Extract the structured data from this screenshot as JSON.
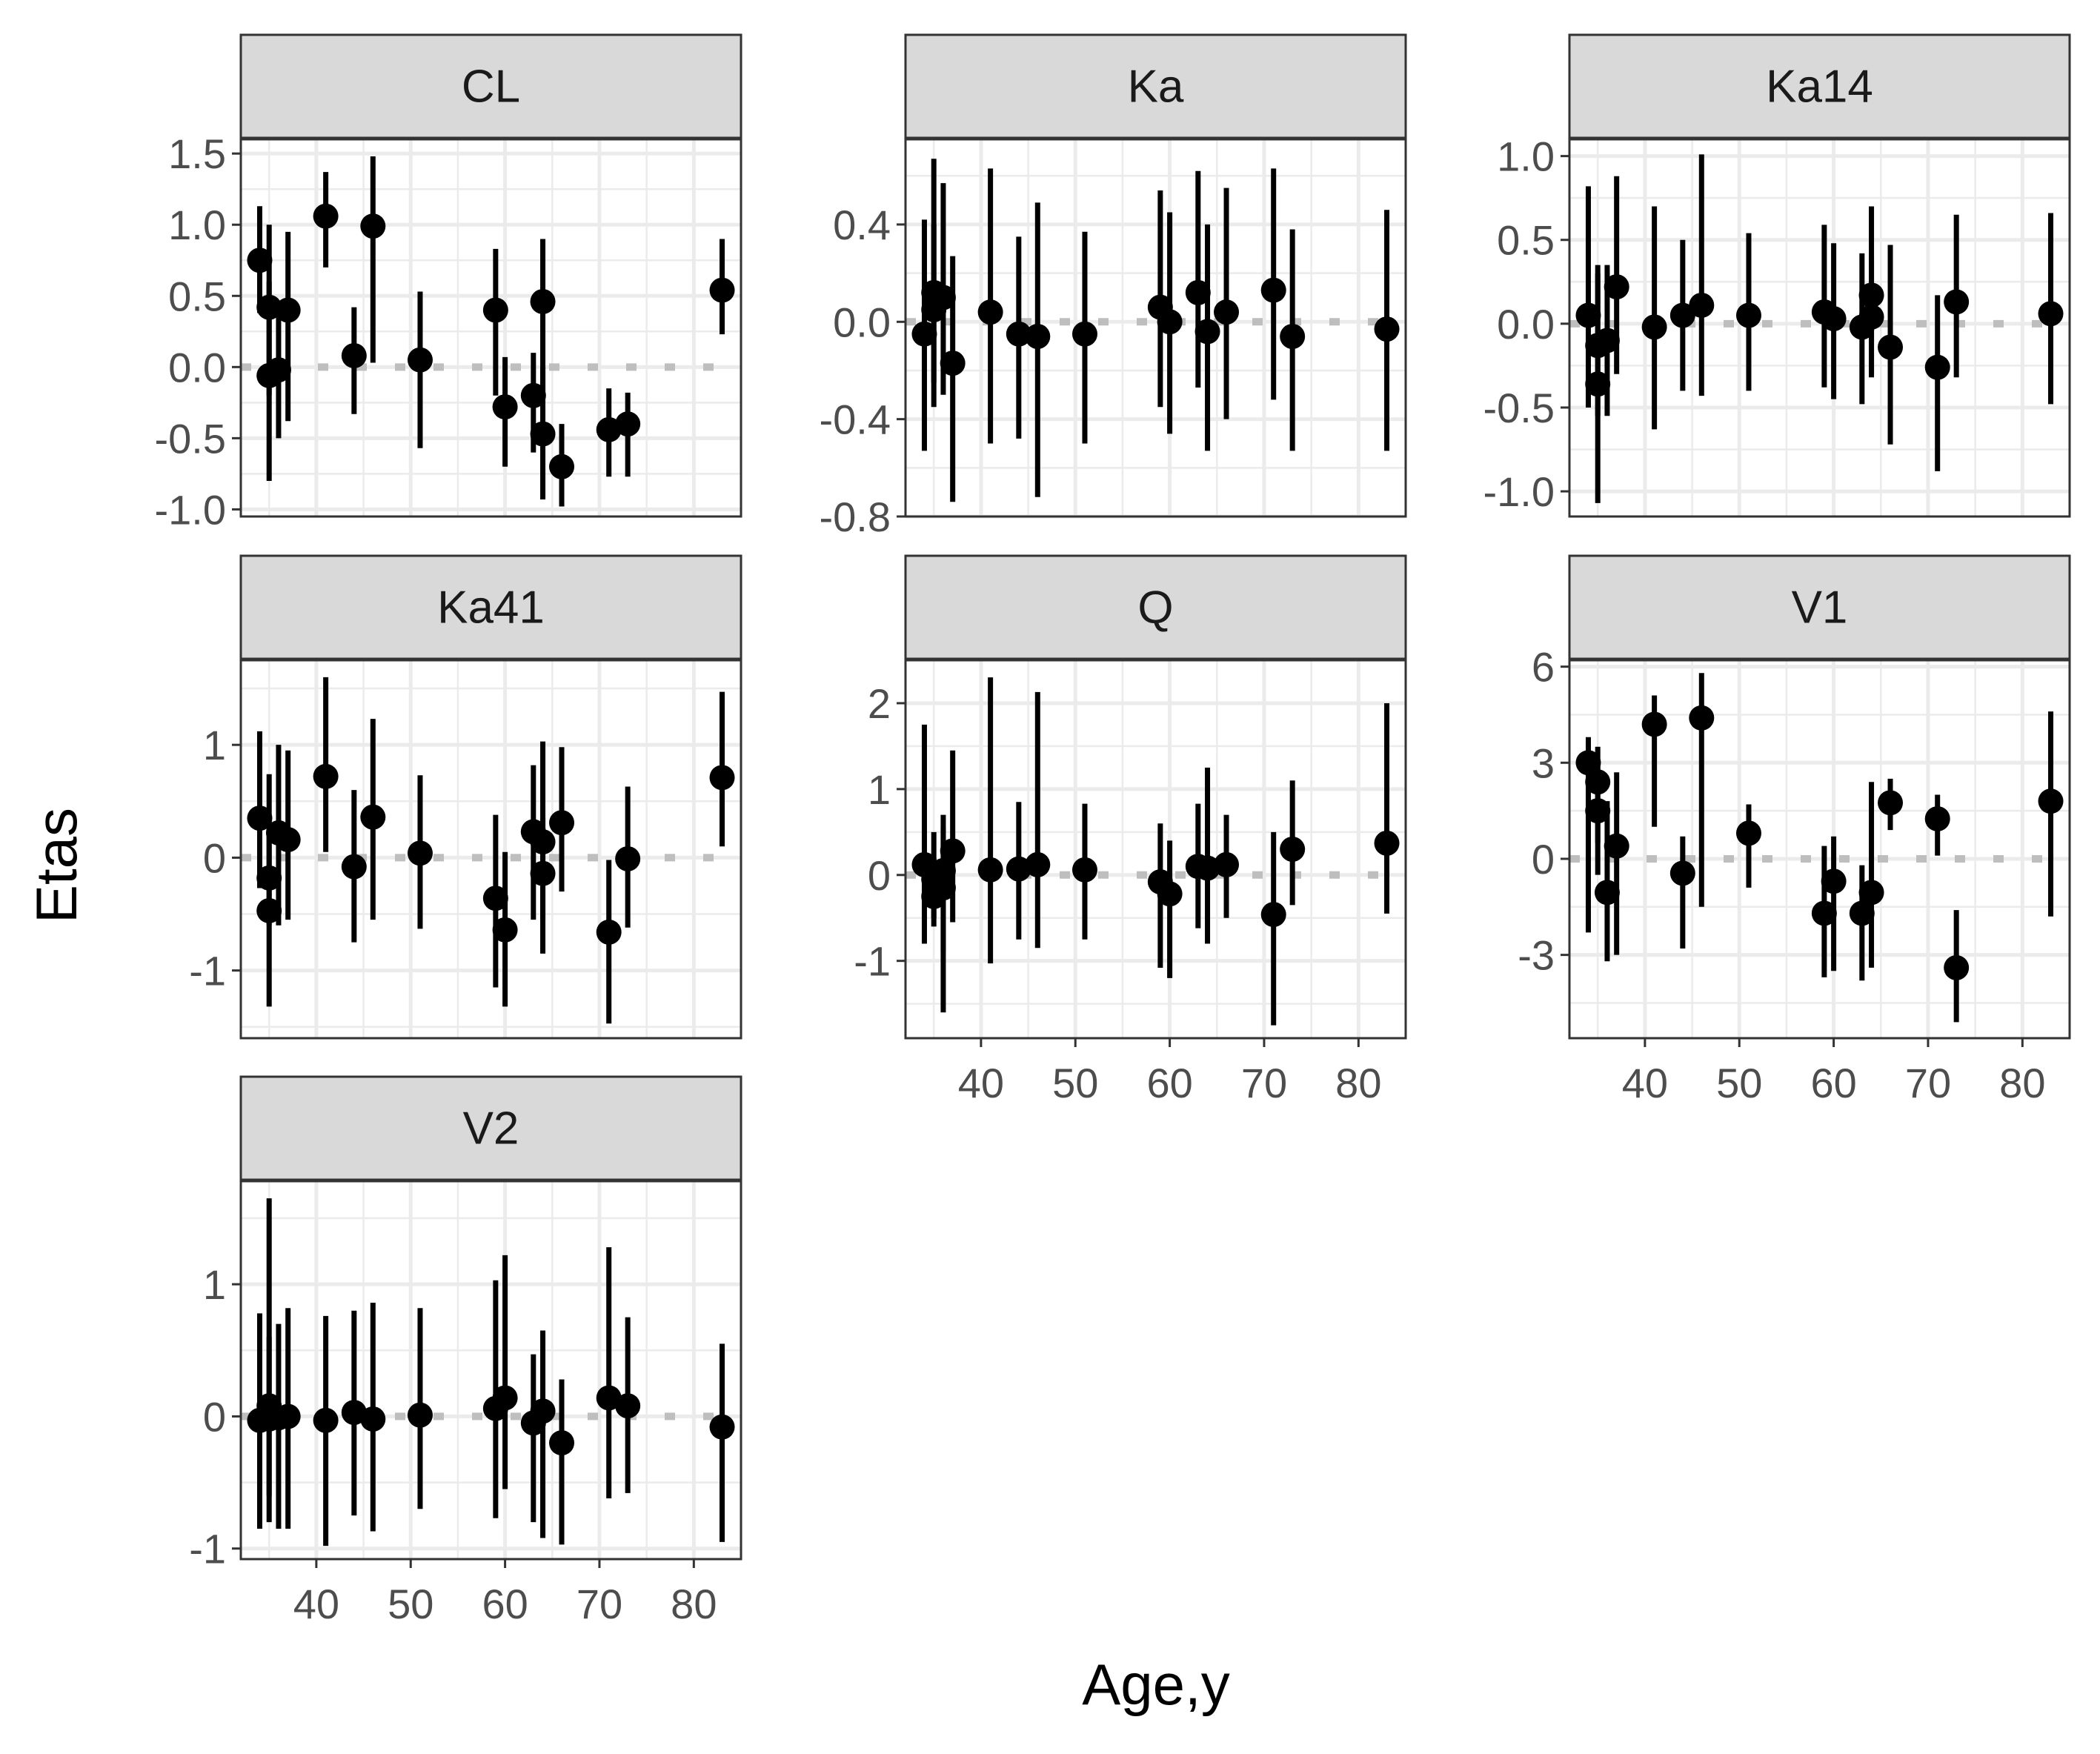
{
  "chart_data": {
    "type": "scatter",
    "style": "faceted point-range (points with vertical error bars), dotted horizontal reference line at y = 0",
    "xlabel": "Age,y",
    "ylabel": "Etas",
    "xlim": [
      32,
      85
    ],
    "xticks": [
      40,
      50,
      60,
      70,
      80
    ],
    "grid": true,
    "colors": {
      "points": "#000000",
      "strip_fill": "#d9d9d9",
      "grid": "#ebebeb",
      "reference_line": "#bebebe",
      "panel_border": "#333333"
    },
    "panels": [
      {
        "name": "CL",
        "ylim": [
          -1.05,
          1.6
        ],
        "yticks": [
          -1.0,
          -0.5,
          0.0,
          0.5,
          1.0,
          1.5
        ],
        "ytick_labels": [
          "-1.0",
          "-0.5",
          "0.0",
          "0.5",
          "1.0",
          "1.5"
        ],
        "points": [
          {
            "x": 34,
            "y": 0.75,
            "lo": 0.38,
            "hi": 1.13
          },
          {
            "x": 35,
            "y": 0.42,
            "lo": -0.2,
            "hi": 1.0
          },
          {
            "x": 35,
            "y": -0.06,
            "lo": -0.8,
            "hi": 0.6
          },
          {
            "x": 36,
            "y": -0.02,
            "lo": -0.5,
            "hi": 0.45
          },
          {
            "x": 37,
            "y": 0.4,
            "lo": -0.38,
            "hi": 0.95
          },
          {
            "x": 41,
            "y": 1.06,
            "lo": 0.7,
            "hi": 1.37
          },
          {
            "x": 44,
            "y": 0.08,
            "lo": -0.33,
            "hi": 0.42
          },
          {
            "x": 46,
            "y": 0.99,
            "lo": 0.03,
            "hi": 1.48
          },
          {
            "x": 51,
            "y": 0.05,
            "lo": -0.57,
            "hi": 0.53
          },
          {
            "x": 59,
            "y": 0.4,
            "lo": -0.2,
            "hi": 0.83
          },
          {
            "x": 60,
            "y": -0.28,
            "lo": -0.7,
            "hi": 0.07
          },
          {
            "x": 63,
            "y": -0.2,
            "lo": -0.6,
            "hi": 0.1
          },
          {
            "x": 64,
            "y": 0.46,
            "lo": -0.2,
            "hi": 0.9
          },
          {
            "x": 64,
            "y": -0.47,
            "lo": -0.93,
            "hi": 0.0
          },
          {
            "x": 66,
            "y": -0.7,
            "lo": -0.98,
            "hi": -0.4
          },
          {
            "x": 71,
            "y": -0.44,
            "lo": -0.77,
            "hi": -0.15
          },
          {
            "x": 73,
            "y": -0.4,
            "lo": -0.77,
            "hi": -0.18
          },
          {
            "x": 83,
            "y": 0.54,
            "lo": 0.23,
            "hi": 0.9
          }
        ]
      },
      {
        "name": "Ka",
        "ylim": [
          -0.8,
          0.75
        ],
        "yticks": [
          -0.8,
          -0.4,
          0.0,
          0.4
        ],
        "ytick_labels": [
          "-0.8",
          "-0.4",
          "0.0",
          "0.4"
        ],
        "points": [
          {
            "x": 34,
            "y": -0.05,
            "lo": -0.53,
            "hi": 0.42
          },
          {
            "x": 35,
            "y": 0.12,
            "lo": -0.35,
            "hi": 0.67
          },
          {
            "x": 35,
            "y": 0.05,
            "lo": -0.25,
            "hi": 0.4
          },
          {
            "x": 36,
            "y": 0.1,
            "lo": -0.3,
            "hi": 0.57
          },
          {
            "x": 37,
            "y": -0.17,
            "lo": -0.74,
            "hi": 0.27
          },
          {
            "x": 41,
            "y": 0.04,
            "lo": -0.5,
            "hi": 0.63
          },
          {
            "x": 44,
            "y": -0.05,
            "lo": -0.48,
            "hi": 0.35
          },
          {
            "x": 46,
            "y": -0.06,
            "lo": -0.72,
            "hi": 0.49
          },
          {
            "x": 51,
            "y": -0.05,
            "lo": -0.5,
            "hi": 0.37
          },
          {
            "x": 59,
            "y": 0.06,
            "lo": -0.35,
            "hi": 0.54
          },
          {
            "x": 60,
            "y": 0.0,
            "lo": -0.46,
            "hi": 0.45
          },
          {
            "x": 63,
            "y": 0.12,
            "lo": -0.27,
            "hi": 0.62
          },
          {
            "x": 64,
            "y": -0.04,
            "lo": -0.53,
            "hi": 0.4
          },
          {
            "x": 66,
            "y": 0.04,
            "lo": -0.4,
            "hi": 0.55
          },
          {
            "x": 71,
            "y": 0.13,
            "lo": -0.32,
            "hi": 0.63
          },
          {
            "x": 73,
            "y": -0.06,
            "lo": -0.53,
            "hi": 0.38
          },
          {
            "x": 83,
            "y": -0.03,
            "lo": -0.53,
            "hi": 0.46
          }
        ]
      },
      {
        "name": "Ka14",
        "ylim": [
          -1.15,
          1.1
        ],
        "yticks": [
          -1.0,
          -0.5,
          0.0,
          0.5,
          1.0
        ],
        "ytick_labels": [
          "-1.0",
          "-0.5",
          "0.0",
          "0.5",
          "1.0"
        ],
        "points": [
          {
            "x": 34,
            "y": 0.05,
            "lo": -0.5,
            "hi": 0.82
          },
          {
            "x": 35,
            "y": -0.13,
            "lo": -0.55,
            "hi": 0.35
          },
          {
            "x": 35,
            "y": -0.36,
            "lo": -1.07,
            "hi": 0.3
          },
          {
            "x": 36,
            "y": -0.1,
            "lo": -0.55,
            "hi": 0.35
          },
          {
            "x": 37,
            "y": 0.22,
            "lo": -0.3,
            "hi": 0.88
          },
          {
            "x": 41,
            "y": -0.02,
            "lo": -0.63,
            "hi": 0.7
          },
          {
            "x": 44,
            "y": 0.05,
            "lo": -0.4,
            "hi": 0.5
          },
          {
            "x": 46,
            "y": 0.11,
            "lo": -0.43,
            "hi": 1.01
          },
          {
            "x": 51,
            "y": 0.05,
            "lo": -0.4,
            "hi": 0.54
          },
          {
            "x": 59,
            "y": 0.07,
            "lo": -0.38,
            "hi": 0.59
          },
          {
            "x": 60,
            "y": 0.03,
            "lo": -0.45,
            "hi": 0.48
          },
          {
            "x": 63,
            "y": -0.02,
            "lo": -0.48,
            "hi": 0.42
          },
          {
            "x": 64,
            "y": 0.17,
            "lo": -0.32,
            "hi": 0.7
          },
          {
            "x": 64,
            "y": 0.04,
            "lo": -0.3,
            "hi": 0.4
          },
          {
            "x": 66,
            "y": -0.14,
            "lo": -0.72,
            "hi": 0.47
          },
          {
            "x": 71,
            "y": -0.26,
            "lo": -0.88,
            "hi": 0.17
          },
          {
            "x": 73,
            "y": 0.13,
            "lo": -0.32,
            "hi": 0.65
          },
          {
            "x": 83,
            "y": 0.06,
            "lo": -0.48,
            "hi": 0.66
          }
        ]
      },
      {
        "name": "Ka41",
        "ylim": [
          -1.6,
          1.75
        ],
        "yticks": [
          -1,
          0,
          1
        ],
        "ytick_labels": [
          "-1",
          "0",
          "1"
        ],
        "points": [
          {
            "x": 34,
            "y": 0.35,
            "lo": -0.27,
            "hi": 1.12
          },
          {
            "x": 35,
            "y": -0.18,
            "lo": -0.6,
            "hi": 0.3
          },
          {
            "x": 35,
            "y": -0.47,
            "lo": -1.32,
            "hi": 0.74
          },
          {
            "x": 36,
            "y": 0.22,
            "lo": -0.6,
            "hi": 1.0
          },
          {
            "x": 37,
            "y": 0.16,
            "lo": -0.55,
            "hi": 0.95
          },
          {
            "x": 41,
            "y": 0.72,
            "lo": 0.05,
            "hi": 1.6
          },
          {
            "x": 44,
            "y": -0.08,
            "lo": -0.75,
            "hi": 0.6
          },
          {
            "x": 46,
            "y": 0.36,
            "lo": -0.55,
            "hi": 1.23
          },
          {
            "x": 51,
            "y": 0.04,
            "lo": -0.63,
            "hi": 0.73
          },
          {
            "x": 59,
            "y": -0.36,
            "lo": -1.15,
            "hi": 0.38
          },
          {
            "x": 60,
            "y": -0.64,
            "lo": -1.32,
            "hi": 0.05
          },
          {
            "x": 63,
            "y": 0.23,
            "lo": -0.55,
            "hi": 0.82
          },
          {
            "x": 64,
            "y": 0.14,
            "lo": -0.85,
            "hi": 1.03
          },
          {
            "x": 64,
            "y": -0.14,
            "lo": -0.55,
            "hi": 0.35
          },
          {
            "x": 66,
            "y": 0.31,
            "lo": -0.3,
            "hi": 0.98
          },
          {
            "x": 71,
            "y": -0.66,
            "lo": -1.47,
            "hi": -0.02
          },
          {
            "x": 73,
            "y": -0.01,
            "lo": -0.62,
            "hi": 0.63
          },
          {
            "x": 83,
            "y": 0.71,
            "lo": 0.1,
            "hi": 1.47
          }
        ]
      },
      {
        "name": "Q",
        "ylim": [
          -1.9,
          2.5
        ],
        "yticks": [
          -1,
          0,
          1,
          2
        ],
        "ytick_labels": [
          "-1",
          "0",
          "1",
          "2"
        ],
        "points": [
          {
            "x": 34,
            "y": 0.12,
            "lo": -0.8,
            "hi": 1.75
          },
          {
            "x": 35,
            "y": -0.25,
            "lo": -0.6,
            "hi": 0.2
          },
          {
            "x": 35,
            "y": -0.05,
            "lo": -0.5,
            "hi": 0.5
          },
          {
            "x": 36,
            "y": -0.15,
            "lo": -1.6,
            "hi": 0.55
          },
          {
            "x": 36,
            "y": 0.05,
            "lo": -0.9,
            "hi": 0.7
          },
          {
            "x": 37,
            "y": 0.28,
            "lo": -0.55,
            "hi": 1.45
          },
          {
            "x": 41,
            "y": 0.06,
            "lo": -1.03,
            "hi": 2.3
          },
          {
            "x": 44,
            "y": 0.07,
            "lo": -0.75,
            "hi": 0.85
          },
          {
            "x": 46,
            "y": 0.12,
            "lo": -0.85,
            "hi": 2.13
          },
          {
            "x": 51,
            "y": 0.06,
            "lo": -0.75,
            "hi": 0.83
          },
          {
            "x": 59,
            "y": -0.08,
            "lo": -1.08,
            "hi": 0.6
          },
          {
            "x": 60,
            "y": -0.22,
            "lo": -1.2,
            "hi": 0.4
          },
          {
            "x": 63,
            "y": 0.1,
            "lo": -0.62,
            "hi": 0.83
          },
          {
            "x": 64,
            "y": 0.08,
            "lo": -0.8,
            "hi": 1.25
          },
          {
            "x": 66,
            "y": 0.12,
            "lo": -0.5,
            "hi": 0.7
          },
          {
            "x": 71,
            "y": -0.46,
            "lo": -1.75,
            "hi": 0.5
          },
          {
            "x": 73,
            "y": 0.3,
            "lo": -0.35,
            "hi": 1.1
          },
          {
            "x": 83,
            "y": 0.37,
            "lo": -0.45,
            "hi": 2.0
          }
        ]
      },
      {
        "name": "V1",
        "ylim": [
          -5.6,
          6.2
        ],
        "yticks": [
          -3,
          0,
          3,
          6
        ],
        "ytick_labels": [
          "-3",
          "0",
          "3",
          "6"
        ],
        "points": [
          {
            "x": 34,
            "y": 3.0,
            "lo": -2.3,
            "hi": 3.8
          },
          {
            "x": 35,
            "y": 2.4,
            "lo": 0.5,
            "hi": 3.5
          },
          {
            "x": 35,
            "y": 1.5,
            "lo": -0.5,
            "hi": 3.0
          },
          {
            "x": 36,
            "y": -1.05,
            "lo": -3.2,
            "hi": 1.8
          },
          {
            "x": 37,
            "y": 0.4,
            "lo": -3.0,
            "hi": 2.7
          },
          {
            "x": 41,
            "y": 4.2,
            "lo": 1.0,
            "hi": 5.1
          },
          {
            "x": 44,
            "y": -0.45,
            "lo": -2.8,
            "hi": 0.7
          },
          {
            "x": 46,
            "y": 4.4,
            "lo": -1.5,
            "hi": 5.8
          },
          {
            "x": 51,
            "y": 0.8,
            "lo": -0.9,
            "hi": 1.7
          },
          {
            "x": 59,
            "y": -1.7,
            "lo": -3.7,
            "hi": 0.4
          },
          {
            "x": 60,
            "y": -0.7,
            "lo": -3.5,
            "hi": 0.7
          },
          {
            "x": 63,
            "y": -1.7,
            "lo": -3.8,
            "hi": -0.2
          },
          {
            "x": 64,
            "y": -1.05,
            "lo": -3.4,
            "hi": 2.4
          },
          {
            "x": 66,
            "y": 1.75,
            "lo": 0.9,
            "hi": 2.5
          },
          {
            "x": 71,
            "y": 1.25,
            "lo": 0.1,
            "hi": 2.0
          },
          {
            "x": 73,
            "y": -3.4,
            "lo": -5.1,
            "hi": -1.6
          },
          {
            "x": 83,
            "y": 1.8,
            "lo": -1.8,
            "hi": 4.6
          }
        ]
      },
      {
        "name": "V2",
        "ylim": [
          -1.08,
          1.78
        ],
        "yticks": [
          -1,
          0,
          1
        ],
        "ytick_labels": [
          "-1",
          "0",
          "1"
        ],
        "points": [
          {
            "x": 34,
            "y": -0.03,
            "lo": -0.85,
            "hi": 0.78
          },
          {
            "x": 35,
            "y": 0.08,
            "lo": -0.6,
            "hi": 1.65
          },
          {
            "x": 35,
            "y": -0.02,
            "lo": -0.8,
            "hi": 0.6
          },
          {
            "x": 36,
            "y": -0.01,
            "lo": -0.85,
            "hi": 0.7
          },
          {
            "x": 37,
            "y": 0.0,
            "lo": -0.85,
            "hi": 0.82
          },
          {
            "x": 41,
            "y": -0.03,
            "lo": -0.98,
            "hi": 0.76
          },
          {
            "x": 44,
            "y": 0.03,
            "lo": -0.75,
            "hi": 0.8
          },
          {
            "x": 46,
            "y": -0.02,
            "lo": -0.87,
            "hi": 0.86
          },
          {
            "x": 51,
            "y": 0.01,
            "lo": -0.7,
            "hi": 0.82
          },
          {
            "x": 59,
            "y": 0.06,
            "lo": -0.77,
            "hi": 1.03
          },
          {
            "x": 60,
            "y": 0.14,
            "lo": -0.55,
            "hi": 1.22
          },
          {
            "x": 63,
            "y": -0.05,
            "lo": -0.8,
            "hi": 0.47
          },
          {
            "x": 64,
            "y": 0.04,
            "lo": -0.92,
            "hi": 0.65
          },
          {
            "x": 66,
            "y": -0.2,
            "lo": -0.97,
            "hi": 0.28
          },
          {
            "x": 71,
            "y": 0.14,
            "lo": -0.62,
            "hi": 1.28
          },
          {
            "x": 73,
            "y": 0.08,
            "lo": -0.58,
            "hi": 0.75
          },
          {
            "x": 83,
            "y": -0.08,
            "lo": -0.95,
            "hi": 0.55
          }
        ]
      }
    ]
  }
}
